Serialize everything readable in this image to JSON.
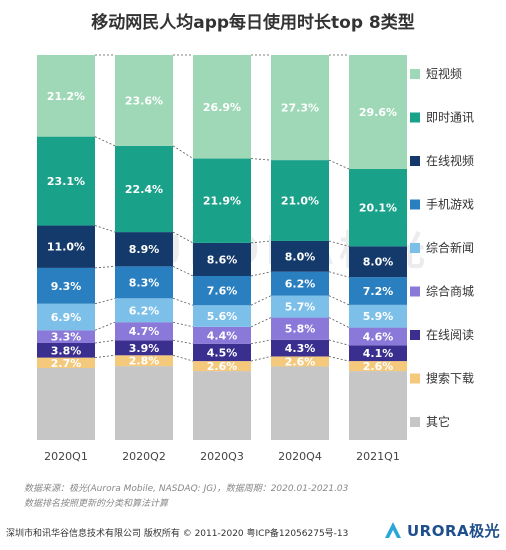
{
  "title": "移动网民人均app每日使用时长top 8类型",
  "chart_data": {
    "type": "bar",
    "stacked": true,
    "normalized_percent": true,
    "categories": [
      "2020Q1",
      "2020Q2",
      "2020Q3",
      "2020Q4",
      "2021Q1"
    ],
    "series": [
      {
        "name": "其它",
        "color": "#c6c6c6",
        "values": [
          null,
          null,
          null,
          null,
          null
        ]
      },
      {
        "name": "搜索下载",
        "color": "#f5c97c",
        "values": [
          2.7,
          2.8,
          2.6,
          2.6,
          2.6
        ]
      },
      {
        "name": "在线阅读",
        "color": "#3a2f8f",
        "values": [
          3.8,
          3.9,
          4.5,
          4.3,
          4.1
        ]
      },
      {
        "name": "综合商城",
        "color": "#8a79d8",
        "values": [
          3.3,
          4.7,
          4.4,
          5.8,
          4.6
        ]
      },
      {
        "name": "综合新闻",
        "color": "#7cc0ea",
        "values": [
          6.9,
          6.2,
          5.6,
          5.7,
          5.9
        ]
      },
      {
        "name": "手机游戏",
        "color": "#2a7fc0",
        "values": [
          9.3,
          8.3,
          7.6,
          6.2,
          7.2
        ]
      },
      {
        "name": "在线视频",
        "color": "#143a6b",
        "values": [
          11.0,
          8.9,
          8.6,
          8.0,
          8.0
        ]
      },
      {
        "name": "即时通讯",
        "color": "#1aa18a",
        "values": [
          23.1,
          22.4,
          21.9,
          21.0,
          20.1
        ]
      },
      {
        "name": "短视频",
        "color": "#9ed8b6",
        "values": [
          21.2,
          23.6,
          26.9,
          27.3,
          29.6
        ]
      }
    ],
    "legend_position": "right",
    "connector_lines": "dashed"
  },
  "watermark": "URORA极光",
  "source_line1": "数据来源：极光(Aurora Mobile, NASDAQ: JG)，数据周期：2020.01-2021.03",
  "source_line2": "数据排名按照更新的分类和算法计算",
  "footer": "深圳市和讯华谷信息技术有限公司 版权所有 © 2011-2020 粤ICP备12056275号-13",
  "logo": {
    "text": "URORA极光",
    "color": "#1e4f8c"
  }
}
